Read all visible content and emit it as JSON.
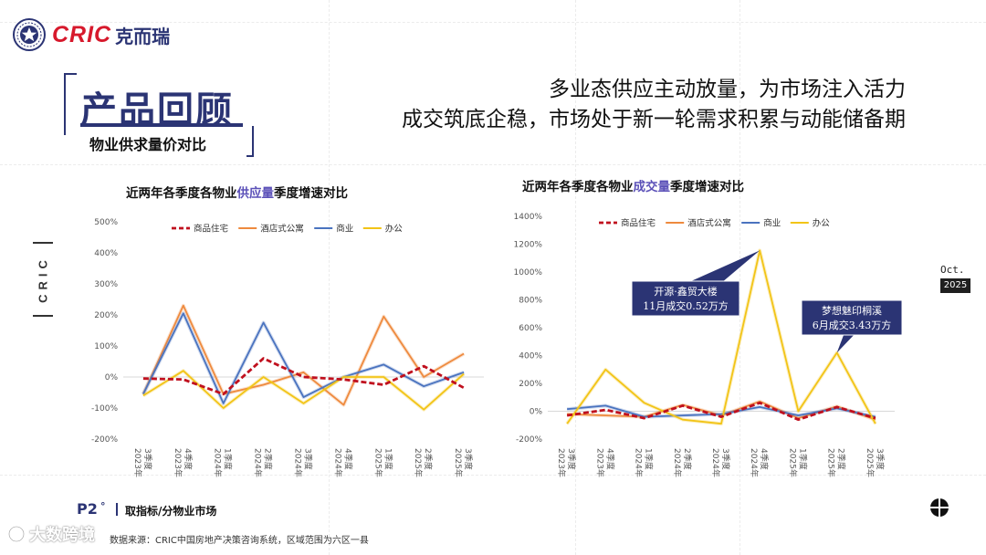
{
  "brand": {
    "name_en": "CRIC",
    "name_cn": "克而瑞"
  },
  "header": {
    "title": "产品回顾",
    "subtitle": "物业供求量价对比",
    "headline_1": "多业态供应主动放量，为市场注入活力",
    "headline_2": "成交筑底企稳，市场处于新一轮需求积累与动能储备期"
  },
  "side_label": "CRIC",
  "date": {
    "month": "Oct.",
    "year": "2025"
  },
  "footer": {
    "page": "P2",
    "mark": "°",
    "section": "取指标/分物业市场",
    "source": "数据来源：CRIC中国房地产决策咨询系统，区域范围为六区一县",
    "watermark": "大数跨境"
  },
  "colors": {
    "residential": "#c0101e",
    "hotel": "#ee8a3e",
    "commercial": "#4a73bf",
    "office": "#f2c417",
    "accent": "#2b3474",
    "callout": "#2b3474"
  },
  "chart_data": [
    {
      "type": "line",
      "title_parts": [
        "近两年各季度各物业",
        "供应量",
        "季度增速对比"
      ],
      "categories": [
        "2023年3季度",
        "2023年4季度",
        "2024年1季度",
        "2024年2季度",
        "2024年3季度",
        "2024年4季度",
        "2025年1季度",
        "2025年2季度",
        "2025年3季度"
      ],
      "category_labels": [
        [
          "3季度",
          "2023年"
        ],
        [
          "4季度",
          "2023年"
        ],
        [
          "1季度",
          "2024年"
        ],
        [
          "2季度",
          "2024年"
        ],
        [
          "3季度",
          "2024年"
        ],
        [
          "4季度",
          "2024年"
        ],
        [
          "1季度",
          "2025年"
        ],
        [
          "2季度",
          "2025年"
        ],
        [
          "3季度",
          "2025年"
        ]
      ],
      "ylim": [
        -200,
        500
      ],
      "yticks": [
        -200,
        -100,
        0,
        100,
        200,
        300,
        400,
        500
      ],
      "ytick_labels": [
        "-200%",
        "-100%",
        "0%",
        "100%",
        "200%",
        "300%",
        "400%",
        "500%"
      ],
      "legend_position": "top",
      "series": [
        {
          "name": "商品住宅",
          "key": "residential",
          "dashed": true,
          "values": [
            -5,
            -8,
            -55,
            60,
            0,
            -8,
            -25,
            35,
            -35
          ]
        },
        {
          "name": "酒店式公寓",
          "key": "hotel",
          "dashed": false,
          "values": [
            -55,
            230,
            -55,
            -25,
            15,
            -90,
            195,
            0,
            75
          ]
        },
        {
          "name": "商业",
          "key": "commercial",
          "dashed": false,
          "values": [
            -55,
            205,
            -85,
            175,
            -65,
            0,
            40,
            -30,
            15
          ]
        },
        {
          "name": "办公",
          "key": "office",
          "dashed": false,
          "values": [
            -60,
            20,
            -100,
            0,
            -85,
            0,
            0,
            -105,
            10
          ]
        }
      ]
    },
    {
      "type": "line",
      "title_parts": [
        "近两年各季度各物业",
        "成交量",
        "季度增速对比"
      ],
      "categories": [
        "2023年3季度",
        "2023年4季度",
        "2024年1季度",
        "2024年2季度",
        "2024年3季度",
        "2024年4季度",
        "2025年1季度",
        "2025年2季度",
        "2025年3季度"
      ],
      "category_labels": [
        [
          "3季度",
          "2023年"
        ],
        [
          "4季度",
          "2023年"
        ],
        [
          "1季度",
          "2024年"
        ],
        [
          "2季度",
          "2024年"
        ],
        [
          "3季度",
          "2024年"
        ],
        [
          "4季度",
          "2024年"
        ],
        [
          "1季度",
          "2025年"
        ],
        [
          "2季度",
          "2025年"
        ],
        [
          "3季度",
          "2025年"
        ]
      ],
      "ylim": [
        -200,
        1400
      ],
      "yticks": [
        -200,
        0,
        200,
        400,
        600,
        800,
        1000,
        1200,
        1400
      ],
      "ytick_labels": [
        "-200%",
        "0%",
        "200%",
        "400%",
        "600%",
        "800%",
        "1000%",
        "1200%",
        "1400%"
      ],
      "legend_position": "top",
      "series": [
        {
          "name": "商品住宅",
          "key": "residential",
          "dashed": true,
          "values": [
            -30,
            10,
            -50,
            40,
            -40,
            60,
            -60,
            30,
            -50
          ]
        },
        {
          "name": "酒店式公寓",
          "key": "hotel",
          "dashed": false,
          "values": [
            -20,
            -30,
            -40,
            45,
            -30,
            70,
            -50,
            35,
            -60
          ]
        },
        {
          "name": "商业",
          "key": "commercial",
          "dashed": false,
          "values": [
            15,
            40,
            -40,
            -30,
            -20,
            30,
            -30,
            20,
            -40
          ]
        },
        {
          "name": "办公",
          "key": "office",
          "dashed": false,
          "values": [
            -90,
            300,
            60,
            -60,
            -90,
            1155,
            0,
            420,
            -90
          ]
        }
      ],
      "annotations": [
        {
          "lines": [
            "开源·鑫贸大楼",
            "11月成交0.52万方"
          ],
          "target_index": 5
        },
        {
          "lines": [
            "梦想魅印桐溪",
            "6月成交3.43万方"
          ],
          "target_index": 7
        }
      ]
    }
  ]
}
